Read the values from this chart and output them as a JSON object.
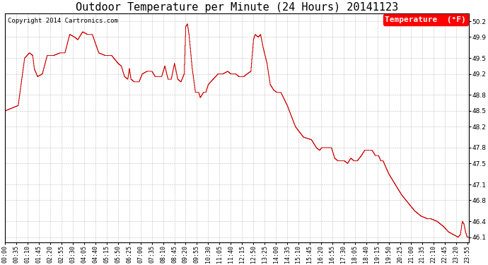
{
  "title": "Outdoor Temperature per Minute (24 Hours) 20141123",
  "copyright": "Copyright 2014 Cartronics.com",
  "legend_label": "Temperature  (°F)",
  "line_color": "#cc0000",
  "background_color": "#ffffff",
  "grid_color": "#b0b0b0",
  "ylim": [
    46.0,
    50.35
  ],
  "yticks": [
    46.1,
    46.4,
    46.8,
    47.1,
    47.5,
    47.8,
    48.2,
    48.5,
    48.8,
    49.2,
    49.5,
    49.9,
    50.2
  ],
  "title_fontsize": 11,
  "axis_fontsize": 6,
  "legend_fontsize": 8,
  "copyright_fontsize": 6.5,
  "tick_step_minutes": 35
}
